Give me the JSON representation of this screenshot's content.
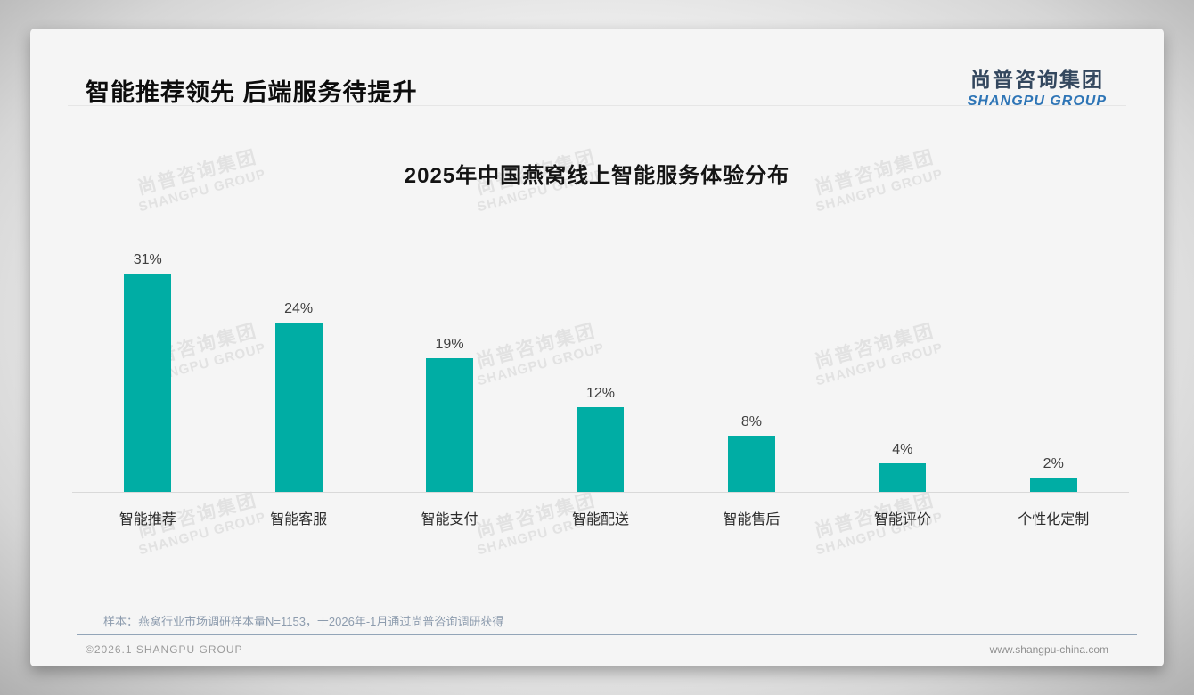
{
  "header": {
    "title": "智能推荐领先 后端服务待提升"
  },
  "logo": {
    "cn": "尚普咨询集团",
    "en": "SHANGPU GROUP"
  },
  "watermark": {
    "cn": "尚普咨询集团",
    "en": "SHANGPU GROUP"
  },
  "chart_data": {
    "type": "bar",
    "title": "2025年中国燕窝线上智能服务体验分布",
    "categories": [
      "智能推荐",
      "智能客服",
      "智能支付",
      "智能配送",
      "智能售后",
      "智能评价",
      "个性化定制"
    ],
    "values": [
      31,
      24,
      19,
      12,
      8,
      4,
      2
    ],
    "value_labels": [
      "31%",
      "24%",
      "19%",
      "12%",
      "8%",
      "4%",
      "2%"
    ],
    "unit": "%",
    "bar_color": "#00ada4",
    "ylim": [
      0,
      34
    ],
    "grid": false,
    "legend": "none",
    "xlabel": "",
    "ylabel": ""
  },
  "footnote": "样本：燕窝行业市场调研样本量N=1153，于2026年-1月通过尚普咨询调研获得",
  "footer": {
    "copyright": "©2026.1 SHANGPU GROUP",
    "website": "www.shangpu-china.com"
  }
}
